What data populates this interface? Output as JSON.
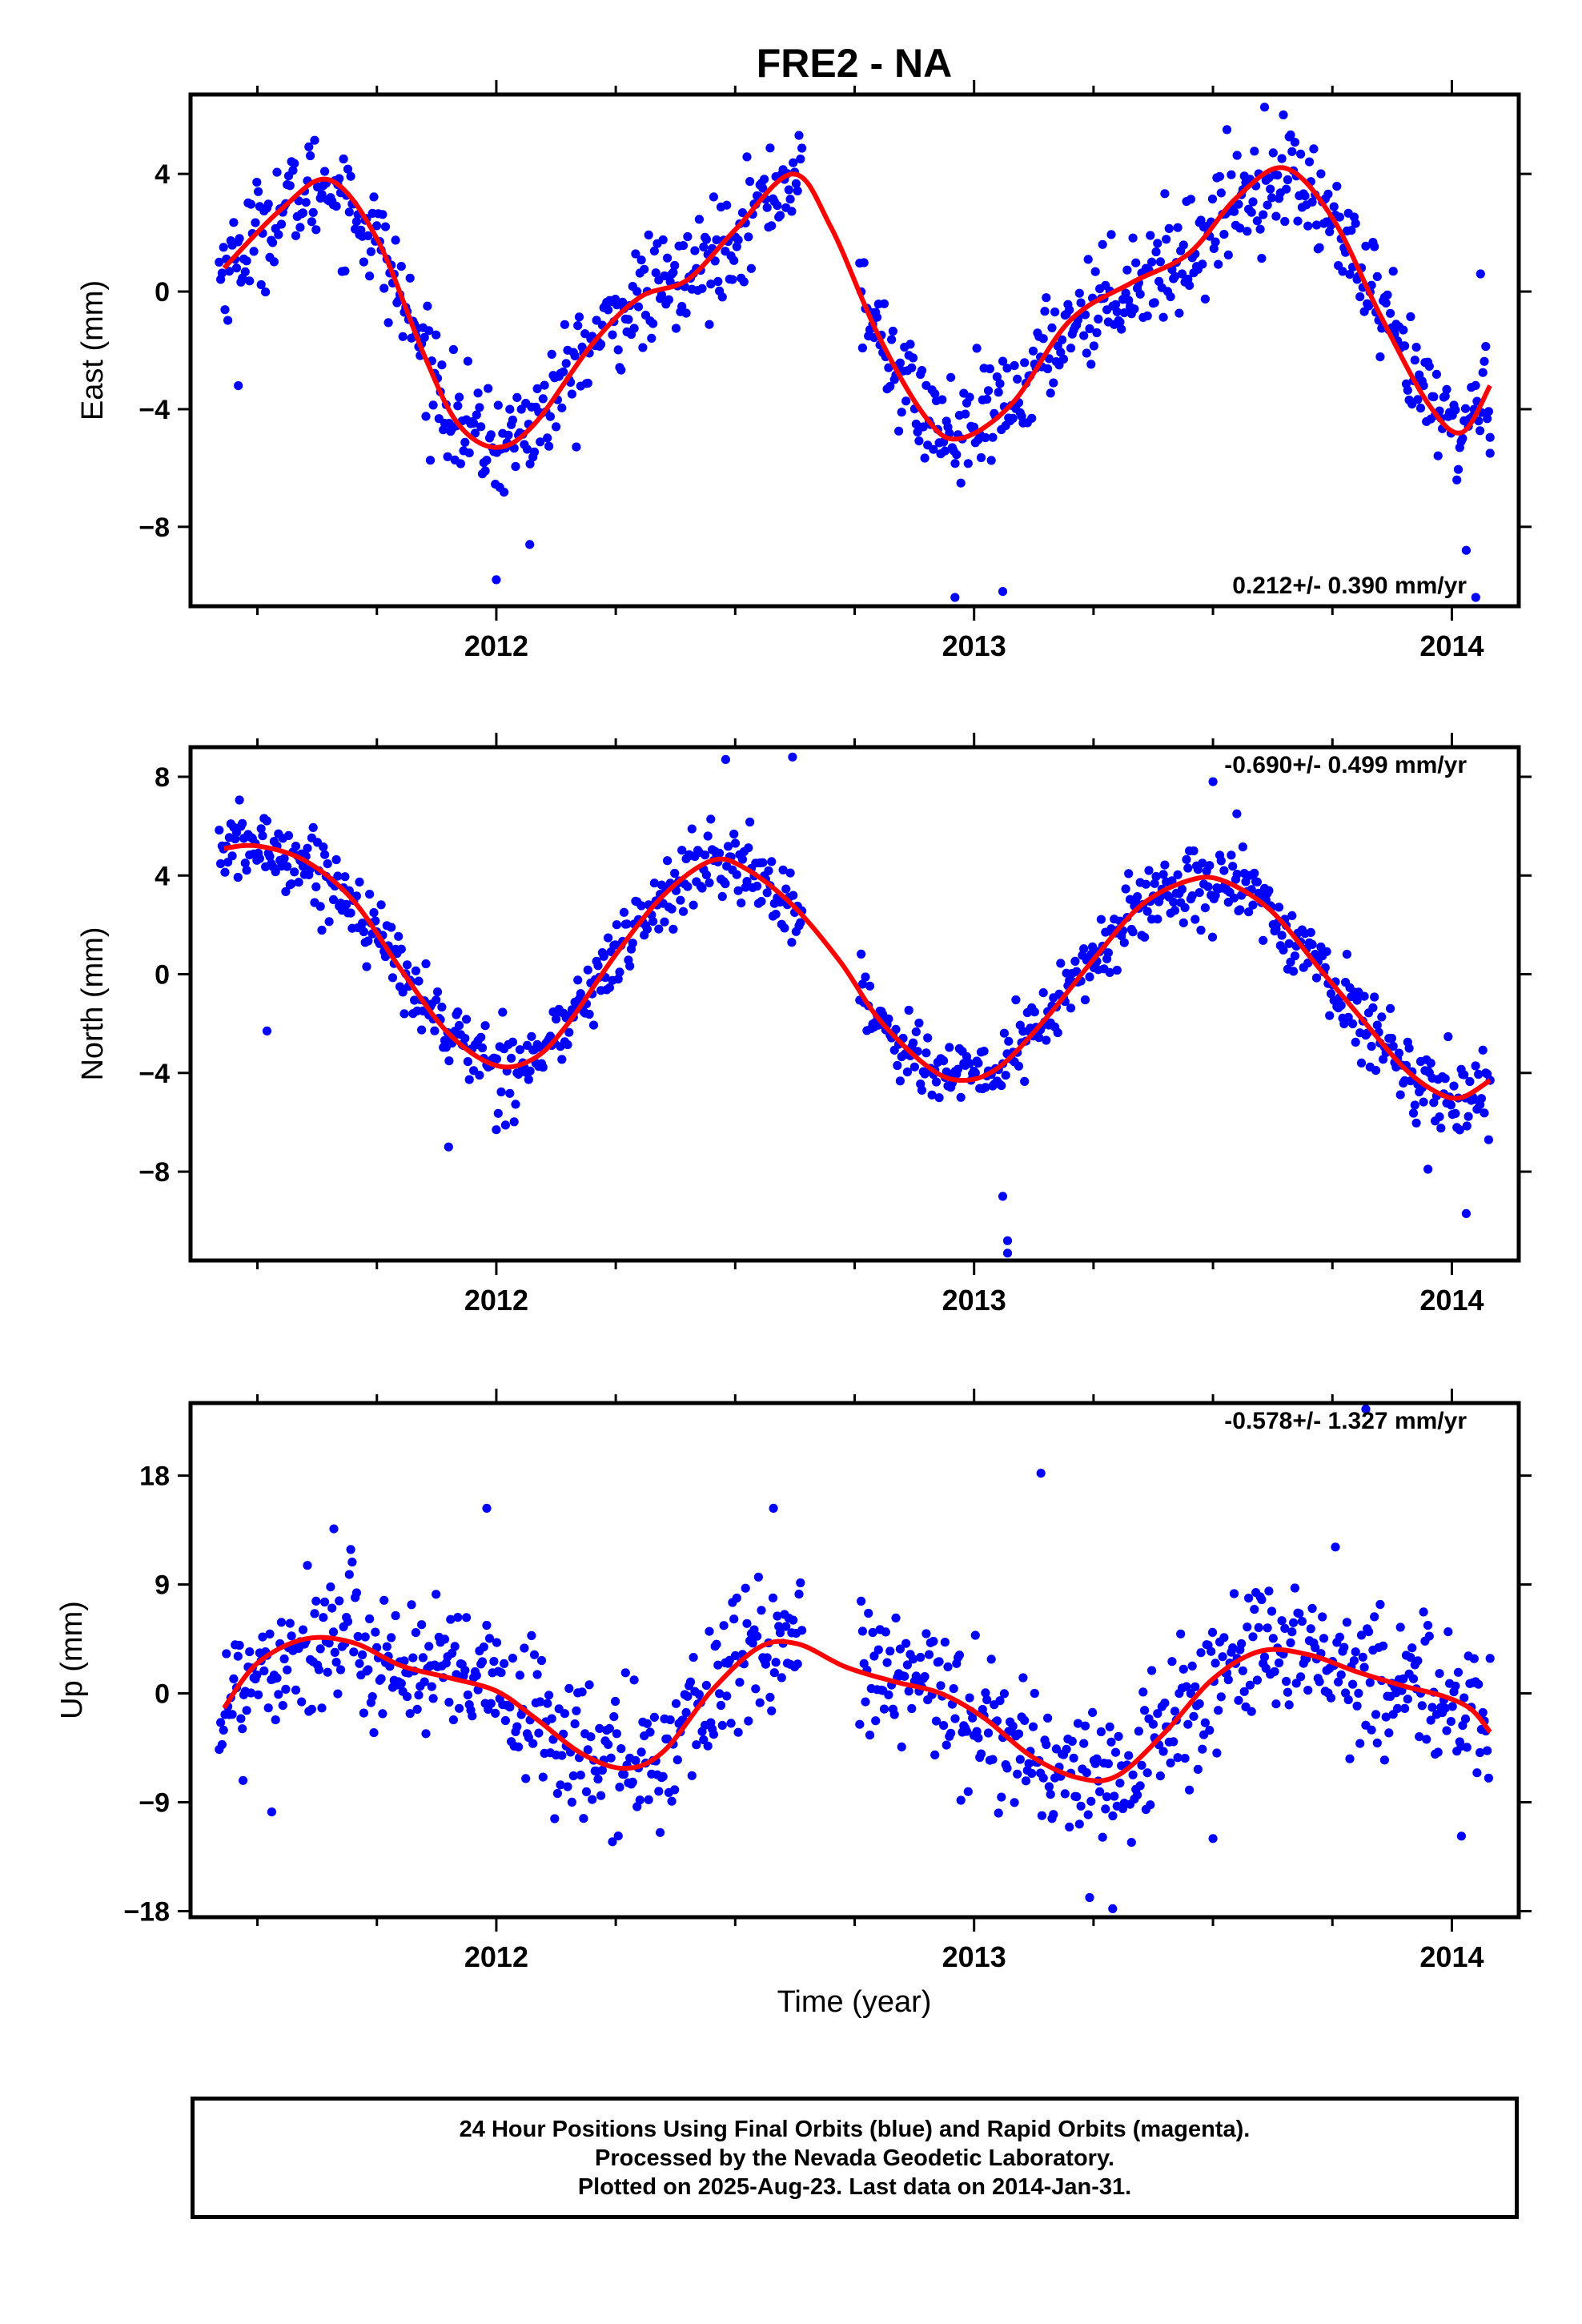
{
  "figure": {
    "title": "FRE2 - NA",
    "xlabel": "Time (year)",
    "footer": [
      "24 Hour Positions Using Final Orbits (blue) and Rapid Orbits (magenta).",
      "Processed by the Nevada Geodetic Laboratory.",
      "Plotted on 2025-Aug-23. Last data on 2014-Jan-31."
    ],
    "colors": {
      "points": "#0000ff",
      "fit": "#ff0000",
      "axes": "#000000",
      "background": "#ffffff"
    }
  },
  "chart_data": [
    {
      "type": "scatter",
      "panel": "east",
      "ylabel": "East (mm)",
      "rate_label": "0.212+/- 0.390 mm/yr",
      "rate_position": "bottom-right",
      "xlim": [
        2011.36,
        2014.14
      ],
      "ylim": [
        -10.7,
        6.7
      ],
      "xticks": [
        2012,
        2013,
        2014
      ],
      "xtick_labels": [
        "2012",
        "2013",
        "2014"
      ],
      "yticks": [
        -8,
        -4,
        0,
        4
      ],
      "ytick_labels": [
        "−8",
        "−4",
        "0",
        "4"
      ],
      "data_start": 2011.42,
      "data_end": 2014.08,
      "gaps": [
        [
          2012.64,
          2012.76
        ]
      ],
      "approx_points": 880,
      "scatter_sd": 0.9,
      "fit_curve": {
        "name": "fit",
        "points": [
          [
            2011.43,
            0.8
          ],
          [
            2011.55,
            2.8
          ],
          [
            2011.65,
            3.8
          ],
          [
            2011.75,
            1.8
          ],
          [
            2011.85,
            -2.2
          ],
          [
            2011.92,
            -4.5
          ],
          [
            2012.0,
            -5.3
          ],
          [
            2012.08,
            -4.5
          ],
          [
            2012.2,
            -1.8
          ],
          [
            2012.3,
            -0.2
          ],
          [
            2012.4,
            0.4
          ],
          [
            2012.5,
            2.1
          ],
          [
            2012.62,
            4.0
          ],
          [
            2012.7,
            2.2
          ],
          [
            2012.8,
            -1.5
          ],
          [
            2012.9,
            -4.3
          ],
          [
            2012.97,
            -5.0
          ],
          [
            2013.08,
            -3.8
          ],
          [
            2013.2,
            -1.0
          ],
          [
            2013.33,
            0.3
          ],
          [
            2013.45,
            1.3
          ],
          [
            2013.55,
            3.2
          ],
          [
            2013.65,
            4.2
          ],
          [
            2013.75,
            2.5
          ],
          [
            2013.85,
            -0.8
          ],
          [
            2013.95,
            -3.8
          ],
          [
            2014.02,
            -4.8
          ],
          [
            2014.08,
            -3.2
          ]
        ]
      },
      "outliers": [
        [
          2011.46,
          -3.2
        ],
        [
          2012.0,
          -9.8
        ],
        [
          2012.07,
          -8.6
        ],
        [
          2012.96,
          -10.4
        ],
        [
          2013.06,
          -10.2
        ],
        [
          2014.03,
          -8.8
        ],
        [
          2014.05,
          -10.4
        ],
        [
          2014.06,
          0.6
        ],
        [
          2014.08,
          -5.5
        ]
      ]
    },
    {
      "type": "scatter",
      "panel": "north",
      "ylabel": "North (mm)",
      "rate_label": "-0.690+/- 0.499 mm/yr",
      "rate_position": "top-right",
      "xlim": [
        2011.36,
        2014.14
      ],
      "ylim": [
        -11.6,
        9.2
      ],
      "xticks": [
        2012,
        2013,
        2014
      ],
      "xtick_labels": [
        "2012",
        "2013",
        "2014"
      ],
      "yticks": [
        -8,
        -4,
        0,
        4,
        8
      ],
      "ytick_labels": [
        "−8",
        "−4",
        "0",
        "4",
        "8"
      ],
      "data_start": 2011.42,
      "data_end": 2014.08,
      "gaps": [
        [
          2012.64,
          2012.76
        ]
      ],
      "approx_points": 880,
      "scatter_sd": 0.75,
      "fit_curve": {
        "name": "fit",
        "points": [
          [
            2011.43,
            5.1
          ],
          [
            2011.5,
            5.2
          ],
          [
            2011.6,
            4.6
          ],
          [
            2011.7,
            3.0
          ],
          [
            2011.8,
            0.2
          ],
          [
            2011.9,
            -2.4
          ],
          [
            2012.0,
            -3.7
          ],
          [
            2012.08,
            -3.4
          ],
          [
            2012.15,
            -2.0
          ],
          [
            2012.25,
            0.8
          ],
          [
            2012.35,
            3.2
          ],
          [
            2012.45,
            4.6
          ],
          [
            2012.52,
            4.3
          ],
          [
            2012.62,
            2.8
          ],
          [
            2012.72,
            0.5
          ],
          [
            2012.8,
            -1.8
          ],
          [
            2012.9,
            -3.7
          ],
          [
            2012.97,
            -4.3
          ],
          [
            2013.05,
            -3.8
          ],
          [
            2013.15,
            -1.8
          ],
          [
            2013.25,
            0.6
          ],
          [
            2013.35,
            2.8
          ],
          [
            2013.45,
            3.8
          ],
          [
            2013.52,
            3.8
          ],
          [
            2013.62,
            2.6
          ],
          [
            2013.72,
            0.3
          ],
          [
            2013.82,
            -2.0
          ],
          [
            2013.9,
            -3.8
          ],
          [
            2013.97,
            -4.8
          ],
          [
            2014.02,
            -5.0
          ],
          [
            2014.08,
            -4.3
          ]
        ]
      },
      "outliers": [
        [
          2011.52,
          -2.3
        ],
        [
          2011.9,
          -7.0
        ],
        [
          2012.0,
          -6.3
        ],
        [
          2012.48,
          8.7
        ],
        [
          2012.62,
          8.8
        ],
        [
          2013.06,
          -9.0
        ],
        [
          2013.07,
          -10.8
        ],
        [
          2013.07,
          -11.3
        ],
        [
          2013.95,
          -7.9
        ],
        [
          2014.03,
          -9.7
        ],
        [
          2013.5,
          7.8
        ],
        [
          2013.55,
          6.5
        ]
      ]
    },
    {
      "type": "scatter",
      "panel": "up",
      "ylabel": "Up (mm)",
      "rate_label": "-0.578+/- 1.327 mm/yr",
      "rate_position": "top-right",
      "xlim": [
        2011.36,
        2014.14
      ],
      "ylim": [
        -18.5,
        24.0
      ],
      "xticks": [
        2012,
        2013,
        2014
      ],
      "xtick_labels": [
        "2012",
        "2013",
        "2014"
      ],
      "yticks": [
        -18,
        -9,
        0,
        9,
        18
      ],
      "ytick_labels": [
        "−18",
        "−9",
        "0",
        "9",
        "18"
      ],
      "data_start": 2011.42,
      "data_end": 2014.08,
      "gaps": [
        [
          2012.64,
          2012.76
        ]
      ],
      "approx_points": 880,
      "scatter_sd": 3.0,
      "fit_curve": {
        "name": "fit",
        "points": [
          [
            2011.43,
            -1.2
          ],
          [
            2011.5,
            2.5
          ],
          [
            2011.6,
            4.5
          ],
          [
            2011.7,
            4.2
          ],
          [
            2011.8,
            2.3
          ],
          [
            2011.9,
            1.3
          ],
          [
            2012.0,
            0.2
          ],
          [
            2012.08,
            -2.0
          ],
          [
            2012.18,
            -5.0
          ],
          [
            2012.27,
            -6.2
          ],
          [
            2012.35,
            -4.8
          ],
          [
            2012.45,
            0.2
          ],
          [
            2012.55,
            3.8
          ],
          [
            2012.63,
            4.1
          ],
          [
            2012.73,
            2.2
          ],
          [
            2012.83,
            1.0
          ],
          [
            2012.93,
            0.0
          ],
          [
            2013.02,
            -2.0
          ],
          [
            2013.12,
            -5.2
          ],
          [
            2013.22,
            -7.0
          ],
          [
            2013.3,
            -6.8
          ],
          [
            2013.4,
            -3.2
          ],
          [
            2013.5,
            1.2
          ],
          [
            2013.6,
            3.5
          ],
          [
            2013.7,
            3.2
          ],
          [
            2013.8,
            1.8
          ],
          [
            2013.9,
            0.6
          ],
          [
            2013.98,
            -0.2
          ],
          [
            2014.04,
            -1.3
          ],
          [
            2014.08,
            -3.2
          ]
        ]
      },
      "outliers": [
        [
          2011.47,
          -7.2
        ],
        [
          2011.53,
          -9.8
        ],
        [
          2011.66,
          13.6
        ],
        [
          2011.98,
          15.3
        ],
        [
          2012.58,
          15.3
        ],
        [
          2013.14,
          18.2
        ],
        [
          2013.29,
          -17.8
        ],
        [
          2013.5,
          -12.0
        ],
        [
          2013.82,
          23.5
        ],
        [
          2014.02,
          -11.8
        ]
      ]
    }
  ]
}
